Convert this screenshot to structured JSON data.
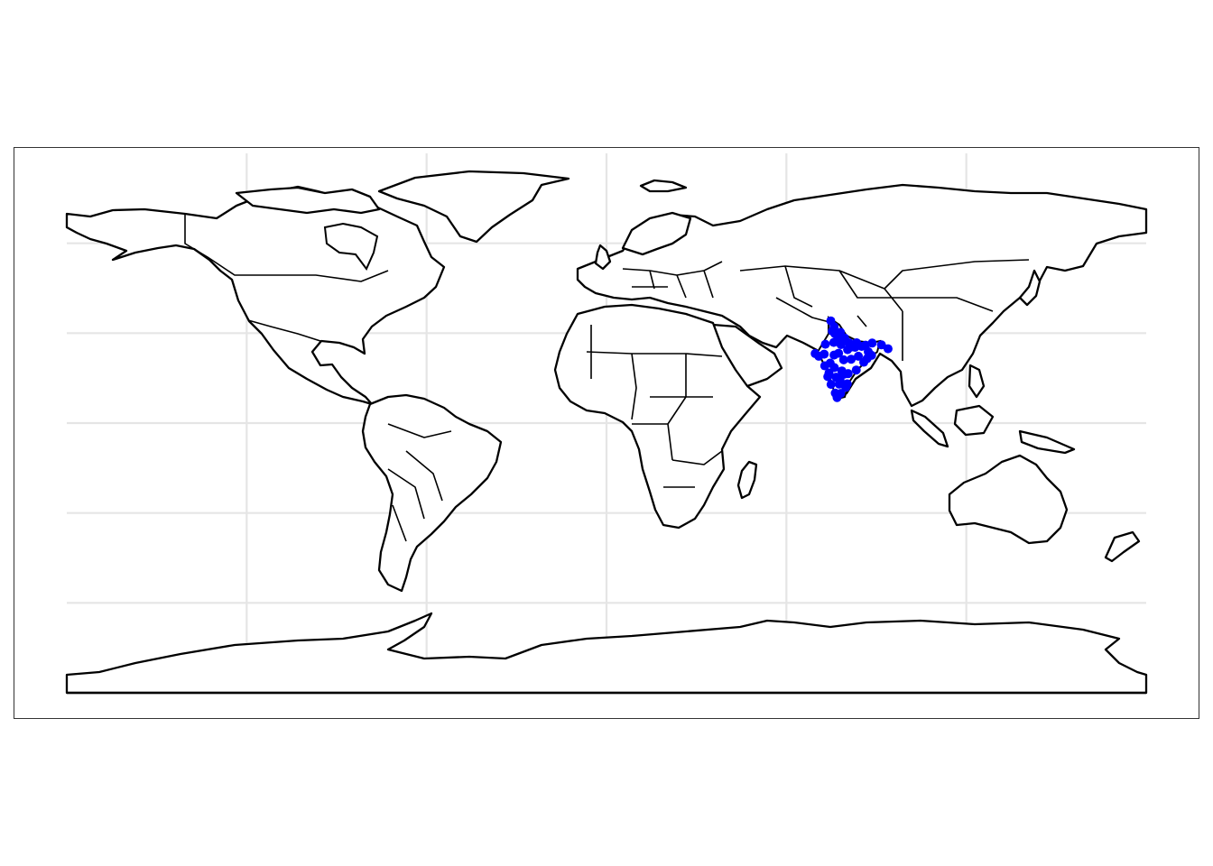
{
  "map": {
    "projection": "equirectangular",
    "extent": {
      "lon": [
        -180,
        180
      ],
      "lat": [
        -90,
        90
      ]
    },
    "graticule": {
      "lon": [
        -120,
        -60,
        0,
        60,
        120
      ],
      "lat": [
        -60,
        -30,
        0,
        30,
        60
      ]
    },
    "highlighted_region": "India",
    "point_color": "#0000ff",
    "outline_color": "#000000",
    "grid_color": "#e5e5e5",
    "points": [
      {
        "lon": 74.8,
        "lat": 34.1
      },
      {
        "lon": 75.9,
        "lat": 32.2
      },
      {
        "lon": 75.3,
        "lat": 30.7
      },
      {
        "lon": 77.2,
        "lat": 28.6
      },
      {
        "lon": 76.1,
        "lat": 29.9
      },
      {
        "lon": 78.0,
        "lat": 30.3
      },
      {
        "lon": 80.9,
        "lat": 26.8
      },
      {
        "lon": 82.9,
        "lat": 25.3
      },
      {
        "lon": 85.1,
        "lat": 25.6
      },
      {
        "lon": 88.4,
        "lat": 22.6
      },
      {
        "lon": 91.7,
        "lat": 26.1
      },
      {
        "lon": 93.9,
        "lat": 24.8
      },
      {
        "lon": 87.3,
        "lat": 23.8
      },
      {
        "lon": 85.8,
        "lat": 20.3
      },
      {
        "lon": 83.3,
        "lat": 17.7
      },
      {
        "lon": 80.3,
        "lat": 13.1
      },
      {
        "lon": 78.1,
        "lat": 9.9
      },
      {
        "lon": 76.9,
        "lat": 8.5
      },
      {
        "lon": 76.3,
        "lat": 10.0
      },
      {
        "lon": 74.9,
        "lat": 12.9
      },
      {
        "lon": 73.8,
        "lat": 15.5
      },
      {
        "lon": 72.8,
        "lat": 19.1
      },
      {
        "lon": 72.6,
        "lat": 23.0
      },
      {
        "lon": 70.8,
        "lat": 22.3
      },
      {
        "lon": 69.6,
        "lat": 23.2
      },
      {
        "lon": 73.0,
        "lat": 26.3
      },
      {
        "lon": 75.8,
        "lat": 26.9
      },
      {
        "lon": 77.4,
        "lat": 23.3
      },
      {
        "lon": 79.1,
        "lat": 21.1
      },
      {
        "lon": 81.6,
        "lat": 21.3
      },
      {
        "lon": 78.5,
        "lat": 17.4
      },
      {
        "lon": 77.6,
        "lat": 13.0
      },
      {
        "lon": 79.8,
        "lat": 11.9
      },
      {
        "lon": 76.6,
        "lat": 15.3
      },
      {
        "lon": 74.2,
        "lat": 16.7
      },
      {
        "lon": 75.9,
        "lat": 22.7
      },
      {
        "lon": 86.9,
        "lat": 21.5
      },
      {
        "lon": 84.0,
        "lat": 22.3
      },
      {
        "lon": 80.4,
        "lat": 24.5
      },
      {
        "lon": 78.2,
        "lat": 26.2
      },
      {
        "lon": 79.4,
        "lat": 28.4
      },
      {
        "lon": 81.8,
        "lat": 25.4
      },
      {
        "lon": 83.4,
        "lat": 26.8
      },
      {
        "lon": 86.4,
        "lat": 26.0
      },
      {
        "lon": 88.6,
        "lat": 26.7
      },
      {
        "lon": 77.9,
        "lat": 14.4
      },
      {
        "lon": 79.2,
        "lat": 16.3
      },
      {
        "lon": 80.6,
        "lat": 16.5
      },
      {
        "lon": 76.0,
        "lat": 18.5
      },
      {
        "lon": 74.6,
        "lat": 20.0
      }
    ]
  }
}
